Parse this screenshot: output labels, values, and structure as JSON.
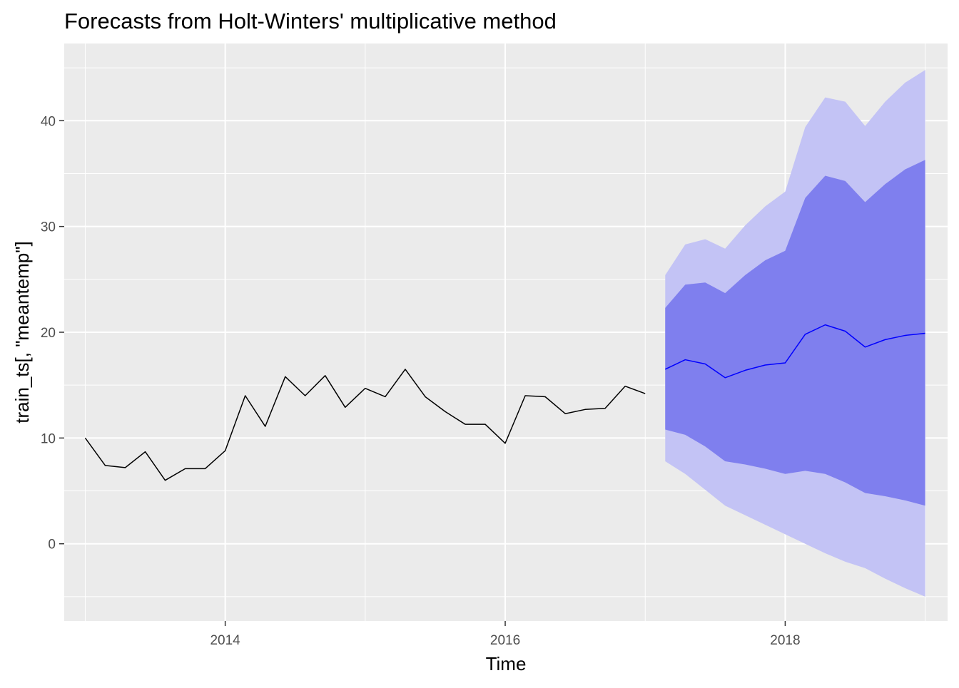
{
  "chart_data": {
    "type": "area",
    "title": "Forecasts from Holt-Winters' multiplicative method",
    "xlabel": "Time",
    "ylabel": "train_ts[, \"meantemp\"]",
    "xlim": [
      2012.85,
      2019.16
    ],
    "ylim": [
      -7.3,
      47.3
    ],
    "x_ticks": [
      2014,
      2016,
      2018
    ],
    "x_tick_labels": [
      "2014",
      "2016",
      "2018"
    ],
    "y_ticks": [
      0,
      10,
      20,
      30,
      40
    ],
    "y_tick_labels": [
      "0",
      "10",
      "20",
      "30",
      "40"
    ],
    "grid": true,
    "legend": "none",
    "colors": {
      "panel_background": "#ebebeb",
      "grid": "#ffffff",
      "history_line": "#000000",
      "forecast_line": "#0000ff",
      "pi80_band": "#7f7fee",
      "pi95_band": "#c3c3f5"
    },
    "series": [
      {
        "kind": "history",
        "x": [
          2013.0,
          2013.143,
          2013.286,
          2013.429,
          2013.571,
          2013.714,
          2013.857,
          2014.0,
          2014.143,
          2014.286,
          2014.429,
          2014.571,
          2014.714,
          2014.857,
          2015.0,
          2015.143,
          2015.286,
          2015.429,
          2015.571,
          2015.714,
          2015.857,
          2016.0,
          2016.143,
          2016.286,
          2016.429,
          2016.571,
          2016.714,
          2016.857,
          2017.0
        ],
        "values": [
          10.0,
          7.4,
          7.2,
          8.7,
          6.0,
          7.1,
          7.1,
          8.8,
          14.0,
          11.1,
          15.8,
          14.0,
          15.9,
          12.9,
          14.7,
          13.9,
          16.5,
          13.9,
          12.5,
          11.3,
          11.3,
          9.5,
          14.0,
          13.9,
          12.3,
          12.7,
          12.8,
          14.9,
          14.2
        ]
      },
      {
        "kind": "point_forecast",
        "x": [
          2017.143,
          2017.286,
          2017.429,
          2017.571,
          2017.714,
          2017.857,
          2018.0,
          2018.143,
          2018.286,
          2018.429,
          2018.571,
          2018.714,
          2018.857,
          2019.0
        ],
        "values": [
          16.5,
          17.4,
          17.0,
          15.7,
          16.4,
          16.9,
          17.1,
          19.8,
          20.7,
          20.1,
          18.6,
          19.3,
          19.7,
          19.9
        ]
      },
      {
        "kind": "pi80",
        "x": [
          2017.143,
          2017.286,
          2017.429,
          2017.571,
          2017.714,
          2017.857,
          2018.0,
          2018.143,
          2018.286,
          2018.429,
          2018.571,
          2018.714,
          2018.857,
          2019.0
        ],
        "lower": [
          10.8,
          10.3,
          9.2,
          7.8,
          7.5,
          7.1,
          6.6,
          6.9,
          6.6,
          5.8,
          4.8,
          4.5,
          4.1,
          3.6
        ],
        "upper": [
          22.3,
          24.5,
          24.7,
          23.7,
          25.4,
          26.8,
          27.7,
          32.7,
          34.8,
          34.3,
          32.3,
          34.0,
          35.4,
          36.3
        ]
      },
      {
        "kind": "pi95",
        "x": [
          2017.143,
          2017.286,
          2017.429,
          2017.571,
          2017.714,
          2017.857,
          2018.0,
          2018.143,
          2018.286,
          2018.429,
          2018.571,
          2018.714,
          2018.857,
          2019.0
        ],
        "lower": [
          7.8,
          6.6,
          5.1,
          3.6,
          2.7,
          1.8,
          0.9,
          0.0,
          -0.9,
          -1.7,
          -2.3,
          -3.3,
          -4.2,
          -5.0
        ],
        "upper": [
          25.4,
          28.3,
          28.8,
          27.9,
          30.1,
          31.9,
          33.3,
          39.4,
          42.2,
          41.8,
          39.5,
          41.8,
          43.6,
          44.8
        ]
      }
    ]
  }
}
